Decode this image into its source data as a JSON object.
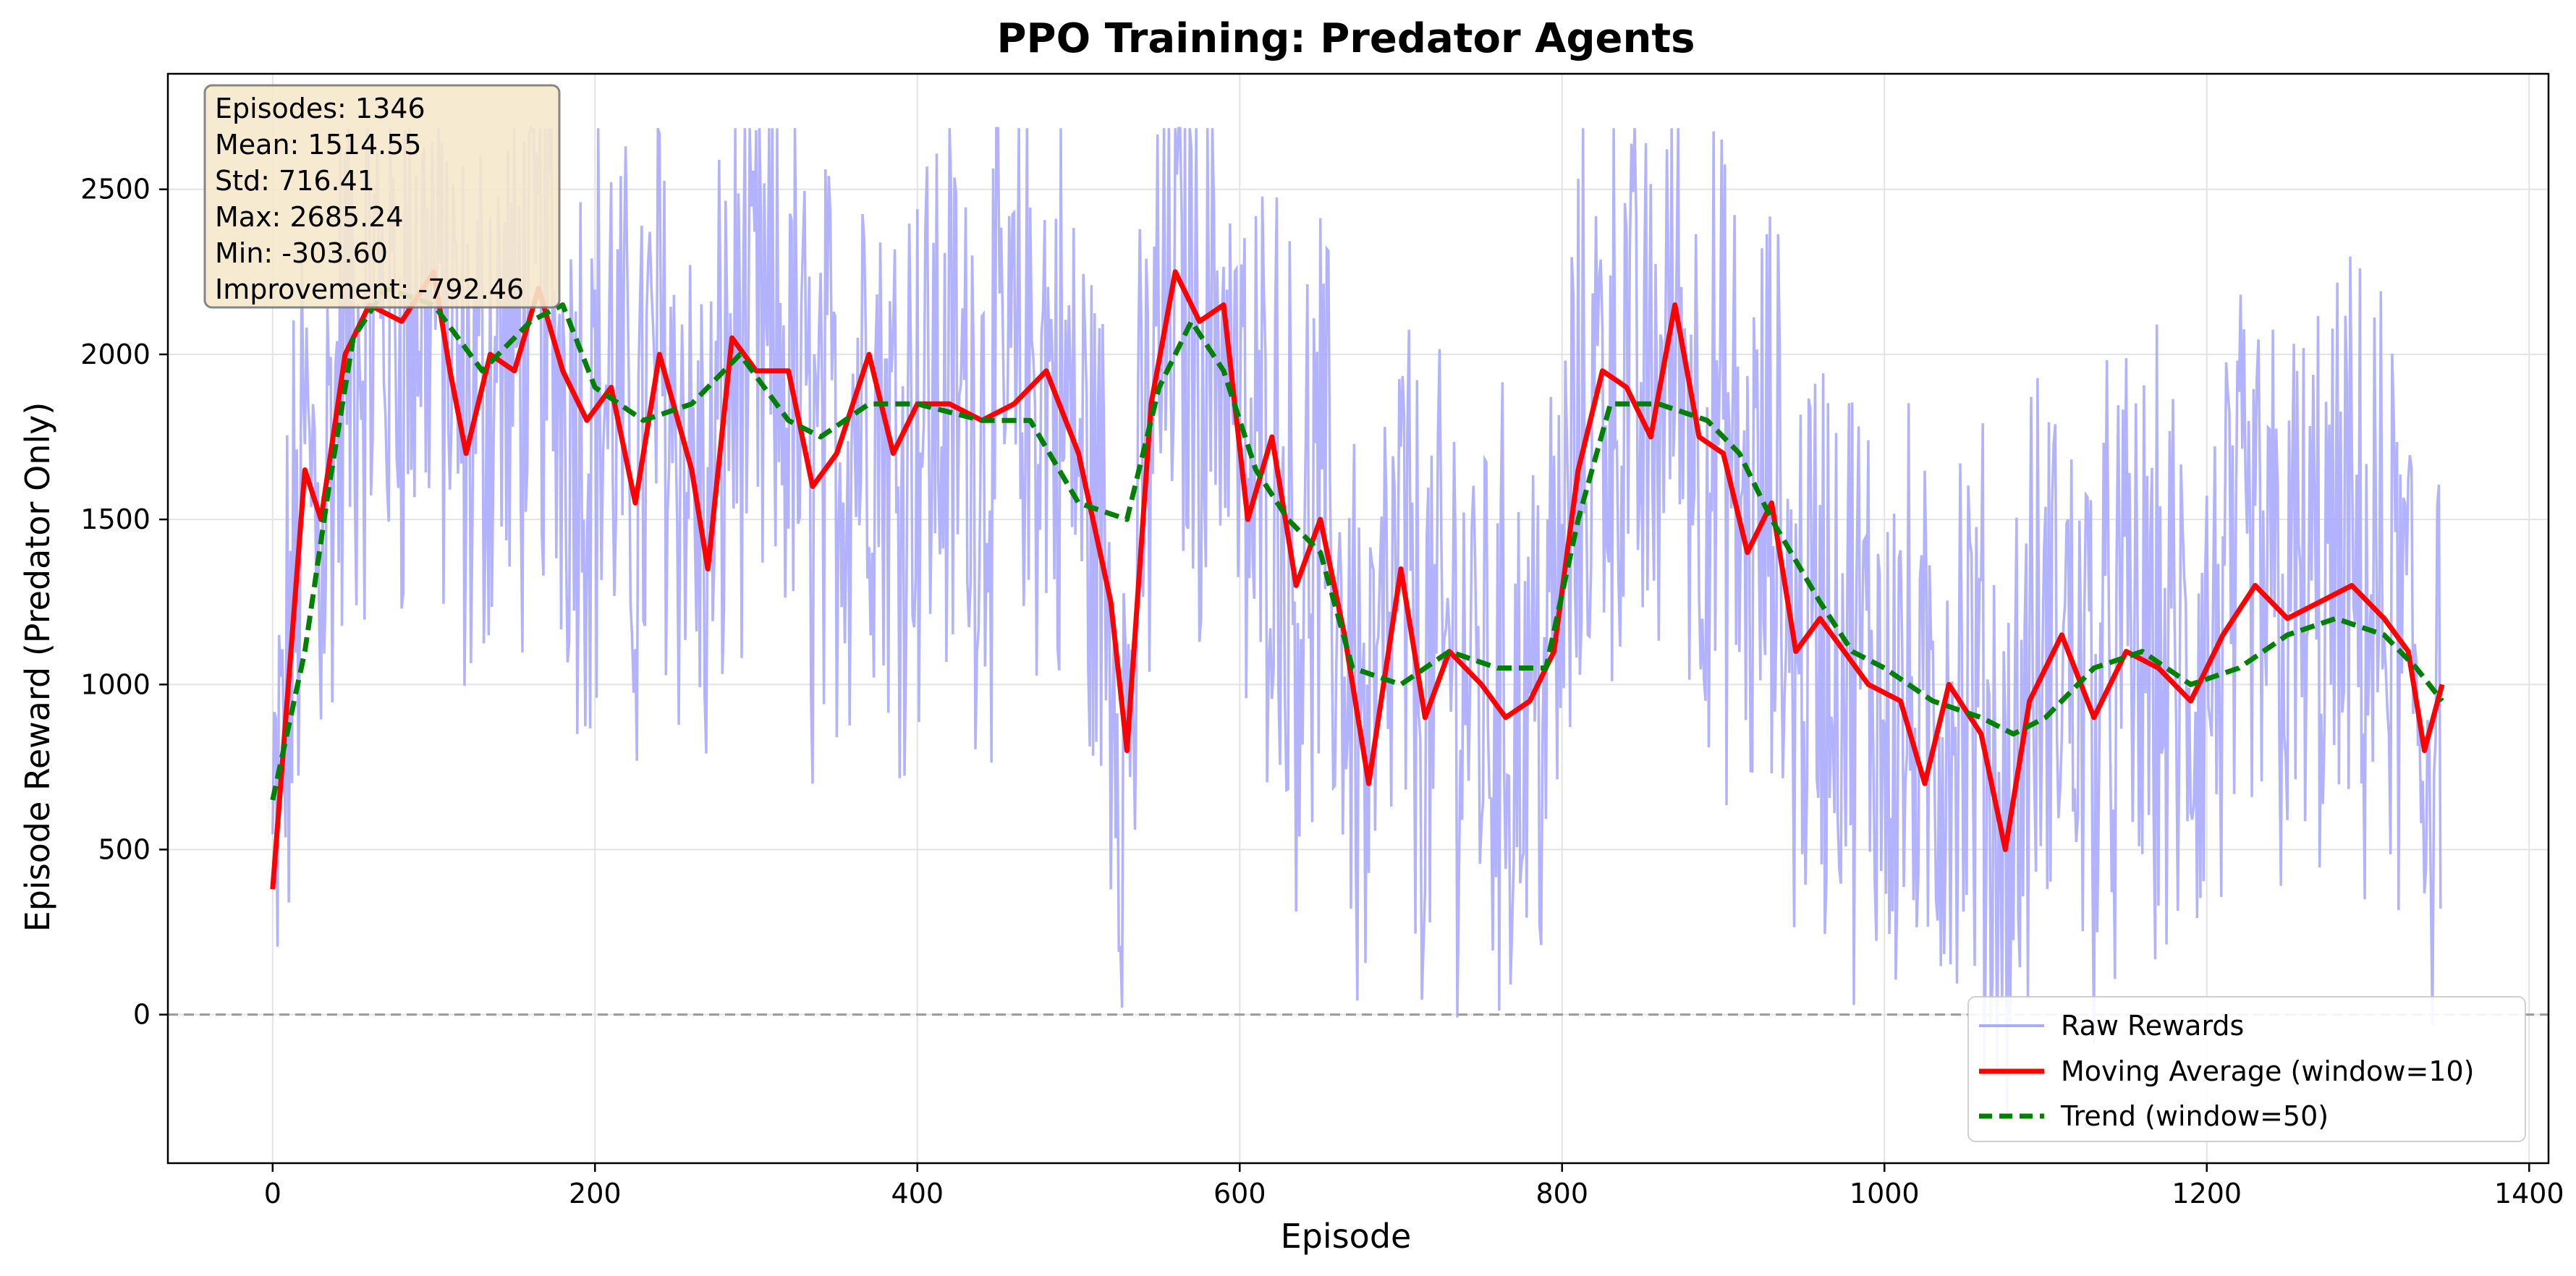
{
  "chart_data": {
    "type": "line",
    "title": "PPO Training: Predator Agents",
    "xlabel": "Episode",
    "ylabel": "Episode Reward (Predator Only)",
    "xlim": [
      -65,
      1412
    ],
    "ylim": [
      -450,
      2850
    ],
    "xticks": [
      0,
      200,
      400,
      600,
      800,
      1000,
      1200,
      1400
    ],
    "yticks": [
      0,
      500,
      1000,
      1500,
      2000,
      2500
    ],
    "grid": true,
    "zero_line": true,
    "legend_position": "lower right",
    "stats_box": [
      "Episodes: 1346",
      "Mean: 1514.55",
      "Std: 716.41",
      "Max: 2685.24",
      "Min: -303.60",
      "Improvement: -792.46"
    ],
    "series": [
      {
        "name": "Raw Rewards",
        "color": "#aaaaff",
        "style": "solid",
        "episodes": 1346,
        "mean": 1514.55,
        "std": 716.41,
        "max": 2685.24,
        "min": -303.6
      },
      {
        "name": "Moving Average (window=10)",
        "color": "#ff0000",
        "style": "solid",
        "points": [
          [
            0,
            380
          ],
          [
            20,
            1650
          ],
          [
            30,
            1500
          ],
          [
            45,
            2000
          ],
          [
            60,
            2150
          ],
          [
            80,
            2100
          ],
          [
            100,
            2250
          ],
          [
            110,
            1950
          ],
          [
            120,
            1700
          ],
          [
            135,
            2000
          ],
          [
            150,
            1950
          ],
          [
            165,
            2200
          ],
          [
            180,
            1950
          ],
          [
            195,
            1800
          ],
          [
            210,
            1900
          ],
          [
            225,
            1550
          ],
          [
            240,
            2000
          ],
          [
            260,
            1650
          ],
          [
            270,
            1350
          ],
          [
            285,
            2050
          ],
          [
            300,
            1950
          ],
          [
            320,
            1950
          ],
          [
            335,
            1600
          ],
          [
            350,
            1700
          ],
          [
            370,
            2000
          ],
          [
            385,
            1700
          ],
          [
            400,
            1850
          ],
          [
            420,
            1850
          ],
          [
            440,
            1800
          ],
          [
            460,
            1850
          ],
          [
            480,
            1950
          ],
          [
            500,
            1700
          ],
          [
            520,
            1250
          ],
          [
            530,
            800
          ],
          [
            545,
            1850
          ],
          [
            560,
            2250
          ],
          [
            575,
            2100
          ],
          [
            590,
            2150
          ],
          [
            605,
            1500
          ],
          [
            620,
            1750
          ],
          [
            635,
            1300
          ],
          [
            650,
            1500
          ],
          [
            665,
            1150
          ],
          [
            680,
            700
          ],
          [
            700,
            1350
          ],
          [
            715,
            900
          ],
          [
            730,
            1100
          ],
          [
            750,
            1000
          ],
          [
            765,
            900
          ],
          [
            780,
            950
          ],
          [
            795,
            1100
          ],
          [
            810,
            1650
          ],
          [
            825,
            1950
          ],
          [
            840,
            1900
          ],
          [
            855,
            1750
          ],
          [
            870,
            2150
          ],
          [
            885,
            1750
          ],
          [
            900,
            1700
          ],
          [
            915,
            1400
          ],
          [
            930,
            1550
          ],
          [
            945,
            1100
          ],
          [
            960,
            1200
          ],
          [
            975,
            1100
          ],
          [
            990,
            1000
          ],
          [
            1010,
            950
          ],
          [
            1025,
            700
          ],
          [
            1040,
            1000
          ],
          [
            1060,
            850
          ],
          [
            1075,
            500
          ],
          [
            1090,
            950
          ],
          [
            1110,
            1150
          ],
          [
            1130,
            900
          ],
          [
            1150,
            1100
          ],
          [
            1170,
            1050
          ],
          [
            1190,
            950
          ],
          [
            1210,
            1150
          ],
          [
            1230,
            1300
          ],
          [
            1250,
            1200
          ],
          [
            1270,
            1250
          ],
          [
            1290,
            1300
          ],
          [
            1310,
            1200
          ],
          [
            1325,
            1100
          ],
          [
            1335,
            800
          ],
          [
            1346,
            1000
          ]
        ]
      },
      {
        "name": "Trend (window=50)",
        "color": "#008000",
        "style": "dashed",
        "points": [
          [
            0,
            650
          ],
          [
            20,
            1100
          ],
          [
            35,
            1600
          ],
          [
            50,
            2050
          ],
          [
            70,
            2200
          ],
          [
            100,
            2150
          ],
          [
            130,
            1950
          ],
          [
            160,
            2100
          ],
          [
            180,
            2150
          ],
          [
            200,
            1900
          ],
          [
            230,
            1800
          ],
          [
            260,
            1850
          ],
          [
            290,
            2000
          ],
          [
            320,
            1800
          ],
          [
            340,
            1750
          ],
          [
            370,
            1850
          ],
          [
            400,
            1850
          ],
          [
            440,
            1800
          ],
          [
            470,
            1800
          ],
          [
            500,
            1550
          ],
          [
            530,
            1500
          ],
          [
            550,
            1900
          ],
          [
            570,
            2100
          ],
          [
            590,
            1950
          ],
          [
            610,
            1650
          ],
          [
            630,
            1500
          ],
          [
            650,
            1400
          ],
          [
            670,
            1050
          ],
          [
            700,
            1000
          ],
          [
            730,
            1100
          ],
          [
            760,
            1050
          ],
          [
            790,
            1050
          ],
          [
            810,
            1500
          ],
          [
            830,
            1850
          ],
          [
            860,
            1850
          ],
          [
            890,
            1800
          ],
          [
            910,
            1700
          ],
          [
            930,
            1500
          ],
          [
            960,
            1250
          ],
          [
            980,
            1100
          ],
          [
            1000,
            1050
          ],
          [
            1030,
            950
          ],
          [
            1060,
            900
          ],
          [
            1080,
            850
          ],
          [
            1100,
            900
          ],
          [
            1130,
            1050
          ],
          [
            1160,
            1100
          ],
          [
            1190,
            1000
          ],
          [
            1220,
            1050
          ],
          [
            1250,
            1150
          ],
          [
            1280,
            1200
          ],
          [
            1310,
            1150
          ],
          [
            1330,
            1050
          ],
          [
            1346,
            950
          ]
        ]
      }
    ]
  }
}
